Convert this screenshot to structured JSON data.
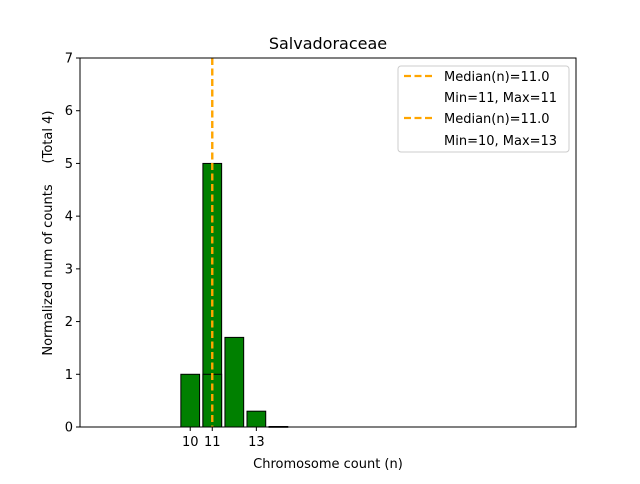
{
  "chart_data": {
    "type": "bar",
    "title": "Salvadoraceae",
    "xlabel": "Chromosome count (n)",
    "ylabel": "Normalized num of counts",
    "ylabel_right": "(Total 4)",
    "xlim": [
      5,
      27.5
    ],
    "ylim": [
      0,
      7
    ],
    "xticks": [
      "10",
      "11",
      "13"
    ],
    "yticks": [
      "0",
      "1",
      "2",
      "3",
      "4",
      "5",
      "6",
      "7"
    ],
    "bar_color": "#008000",
    "line_color": "#FFA500",
    "grid": false,
    "legend_position": "top-right",
    "series": [
      {
        "x": [
          10,
          11,
          12,
          13,
          14
        ],
        "values": [
          1,
          5,
          1.7,
          0.3,
          0
        ]
      },
      {
        "x": [
          11
        ],
        "values": [
          1
        ]
      }
    ],
    "median_lines": [
      {
        "x": 11.0,
        "label": "Median(n)=11.0",
        "sub": "Min=11, Max=11"
      },
      {
        "x": 11.0,
        "label": "Median(n)=11.0",
        "sub": "Min=10, Max=13"
      }
    ]
  }
}
